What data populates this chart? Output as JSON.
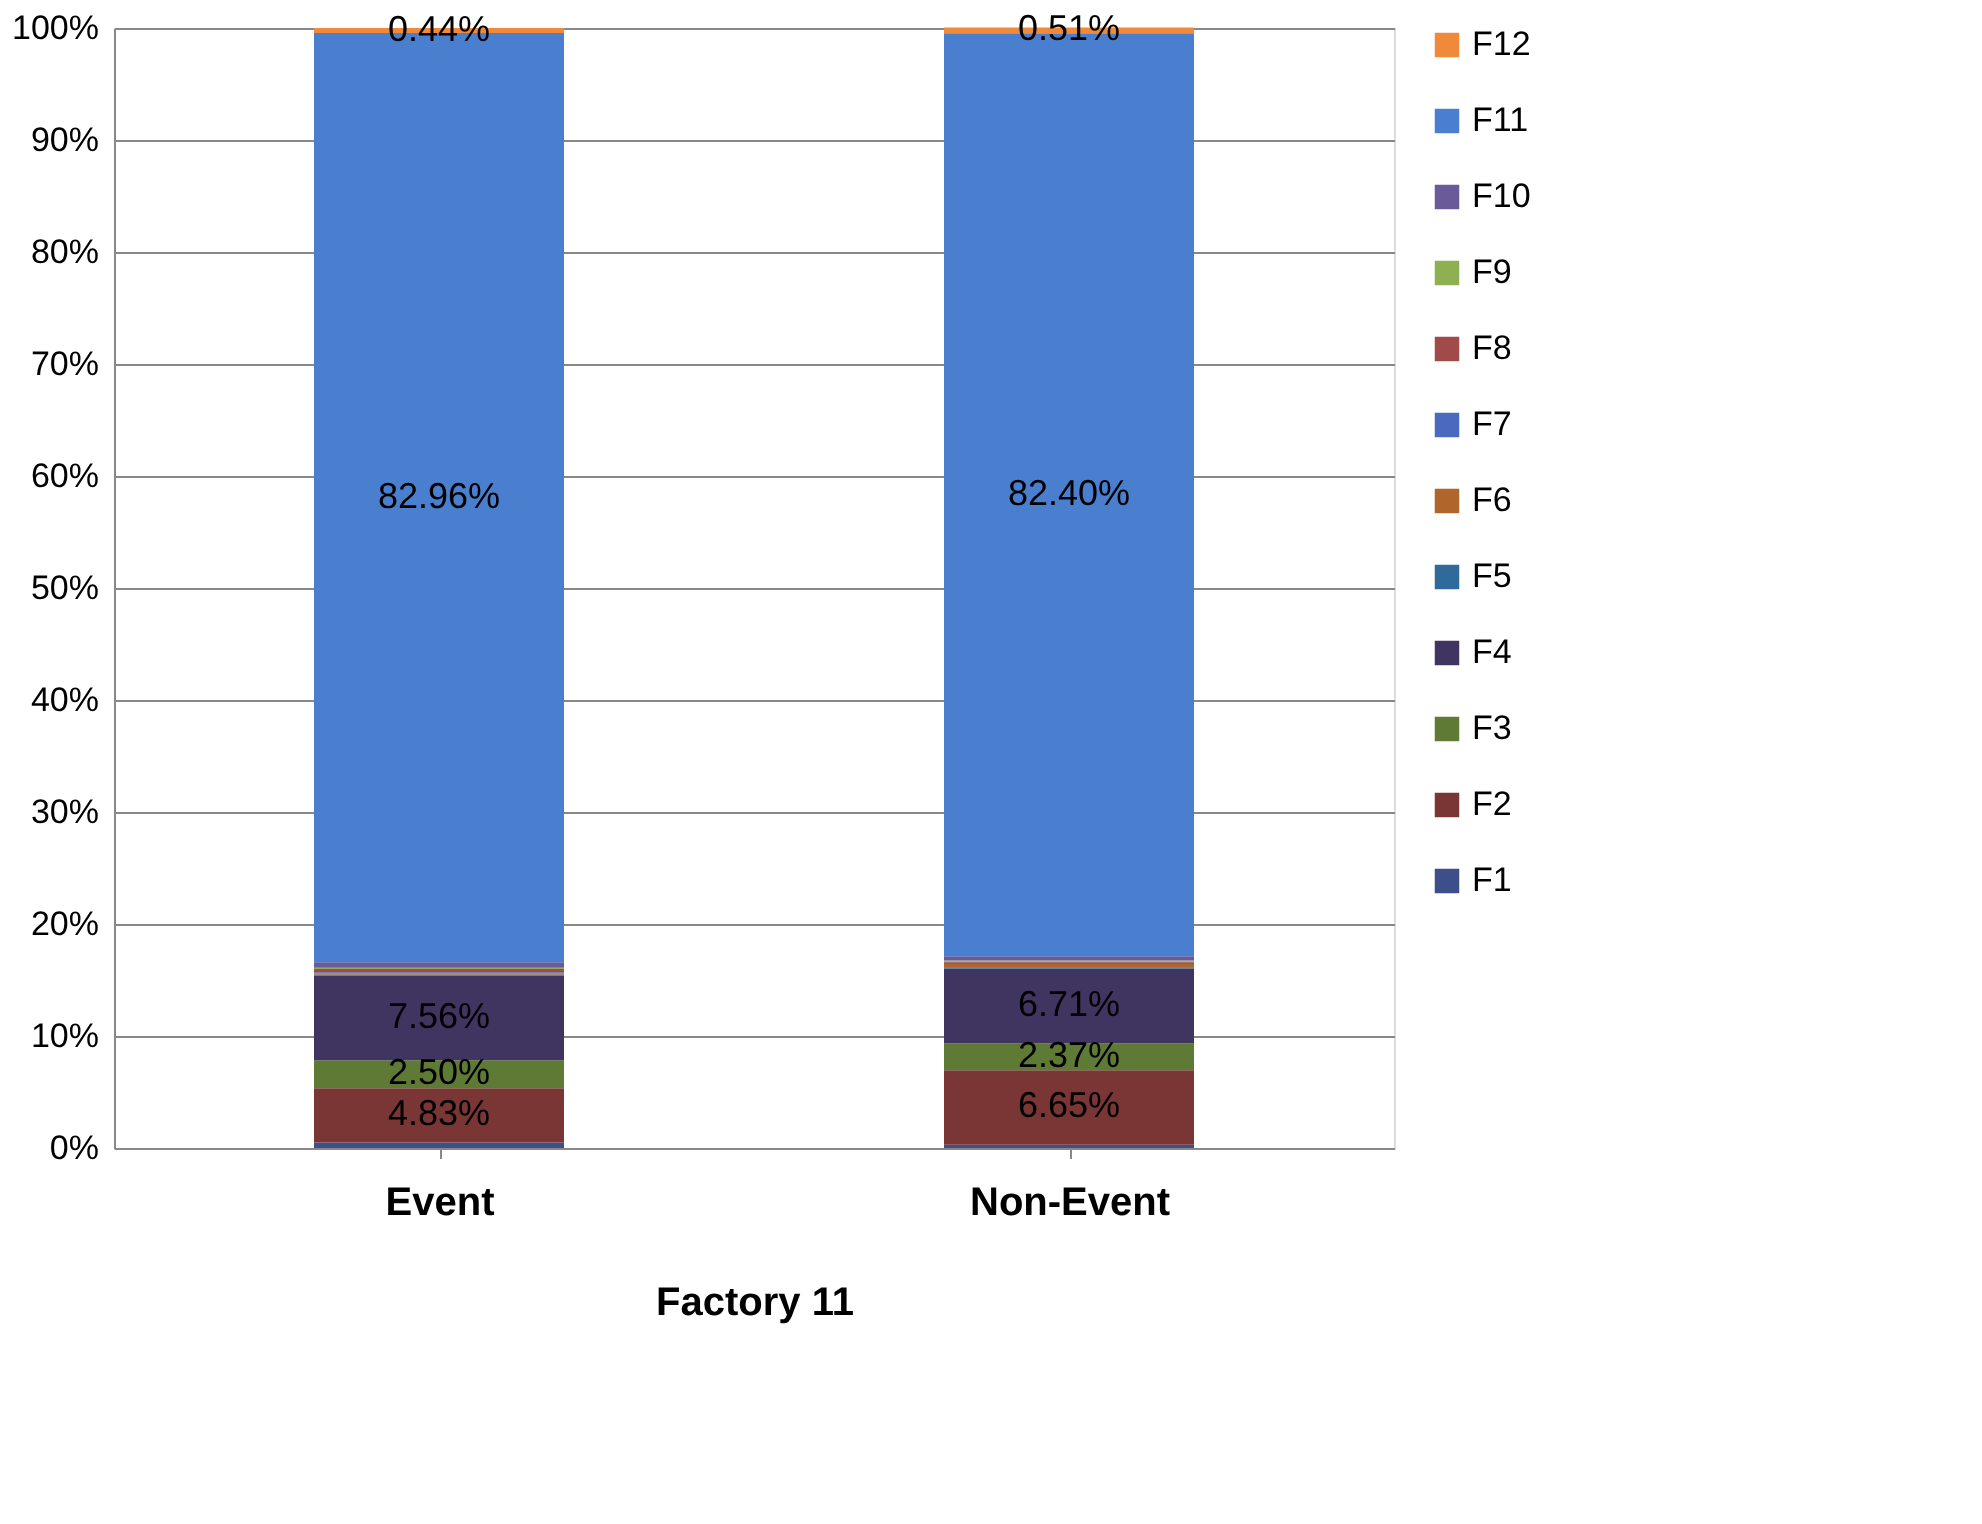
{
  "chart_data": {
    "type": "bar",
    "stacked": true,
    "xlabel": "Factory 11",
    "categories": [
      "Event",
      "Non-Event"
    ],
    "series": [
      {
        "name": "F1",
        "color": "#3c4f8a",
        "values": [
          0.5,
          0.3
        ],
        "value_labels": [
          null,
          null
        ]
      },
      {
        "name": "F2",
        "color": "#7a3535",
        "values": [
          4.83,
          6.65
        ],
        "value_labels": [
          "4.83%",
          "6.65%"
        ]
      },
      {
        "name": "F3",
        "color": "#5f7a35",
        "values": [
          2.5,
          2.37
        ],
        "value_labels": [
          "2.50%",
          "2.37%"
        ]
      },
      {
        "name": "F4",
        "color": "#3f3560",
        "values": [
          7.56,
          6.71
        ],
        "value_labels": [
          "7.56%",
          "6.71%"
        ]
      },
      {
        "name": "F5",
        "color": "#2f6a9a",
        "values": [
          0.1,
          0.1
        ],
        "value_labels": [
          null,
          null
        ]
      },
      {
        "name": "F6",
        "color": "#b0652a",
        "values": [
          0.1,
          0.3
        ],
        "value_labels": [
          null,
          null
        ]
      },
      {
        "name": "F7",
        "color": "#4a6ac0",
        "values": [
          0.1,
          0.1
        ],
        "value_labels": [
          null,
          null
        ]
      },
      {
        "name": "F8",
        "color": "#a04a4a",
        "values": [
          0.3,
          0.1
        ],
        "value_labels": [
          null,
          null
        ]
      },
      {
        "name": "F9",
        "color": "#8fb050",
        "values": [
          0.1,
          0.1
        ],
        "value_labels": [
          null,
          null
        ]
      },
      {
        "name": "F10",
        "color": "#6a5a9a",
        "values": [
          0.5,
          0.4
        ],
        "value_labels": [
          null,
          null
        ]
      },
      {
        "name": "F11",
        "color": "#4a7fd0",
        "values": [
          82.96,
          82.4
        ],
        "value_labels": [
          "82.96%",
          "82.40%"
        ]
      },
      {
        "name": "F12",
        "color": "#f08a3a",
        "values": [
          0.44,
          0.51
        ],
        "value_labels": [
          "0.44%",
          "0.51%"
        ]
      }
    ],
    "ylim": [
      0,
      100
    ],
    "yticks": [
      {
        "value": 0,
        "label": "0%"
      },
      {
        "value": 10,
        "label": "10%"
      },
      {
        "value": 20,
        "label": "20%"
      },
      {
        "value": 30,
        "label": "30%"
      },
      {
        "value": 40,
        "label": "40%"
      },
      {
        "value": 50,
        "label": "50%"
      },
      {
        "value": 60,
        "label": "60%"
      },
      {
        "value": 70,
        "label": "70%"
      },
      {
        "value": 80,
        "label": "80%"
      },
      {
        "value": 90,
        "label": "90%"
      },
      {
        "value": 100,
        "label": "100%"
      }
    ],
    "grid": "y",
    "legend": "right"
  }
}
